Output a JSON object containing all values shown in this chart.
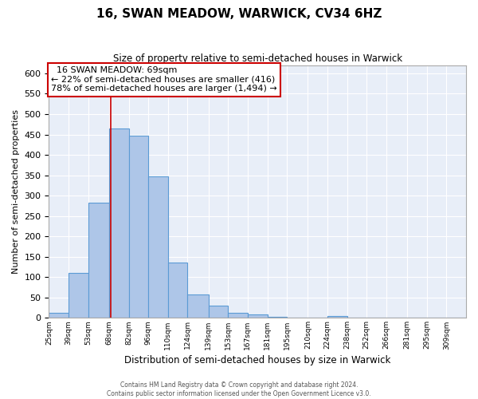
{
  "title": "16, SWAN MEADOW, WARWICK, CV34 6HZ",
  "subtitle": "Size of property relative to semi-detached houses in Warwick",
  "xlabel": "Distribution of semi-detached houses by size in Warwick",
  "ylabel": "Number of semi-detached properties",
  "bar_heights": [
    13,
    110,
    283,
    465,
    448,
    347,
    135,
    57,
    31,
    13,
    8,
    2,
    0,
    0,
    5,
    0,
    0,
    0,
    0,
    0,
    0
  ],
  "bin_edges": [
    25,
    39,
    53,
    68,
    82,
    96,
    110,
    124,
    139,
    153,
    167,
    181,
    195,
    210,
    224,
    238,
    252,
    266,
    281,
    295,
    309,
    323
  ],
  "xtick_labels": [
    "25sqm",
    "39sqm",
    "53sqm",
    "68sqm",
    "82sqm",
    "96sqm",
    "110sqm",
    "124sqm",
    "139sqm",
    "153sqm",
    "167sqm",
    "181sqm",
    "195sqm",
    "210sqm",
    "224sqm",
    "238sqm",
    "252sqm",
    "266sqm",
    "281sqm",
    "295sqm",
    "309sqm"
  ],
  "ylim": [
    0,
    620
  ],
  "yticks": [
    0,
    50,
    100,
    150,
    200,
    250,
    300,
    350,
    400,
    450,
    500,
    550,
    600
  ],
  "bar_color": "#aec6e8",
  "bar_edge_color": "#5b9bd5",
  "bg_color": "#e8eef8",
  "grid_color": "#ffffff",
  "annotation_box_color": "#cc0000",
  "property_size": 69,
  "property_label": "16 SWAN MEADOW: 69sqm",
  "pct_smaller": 22,
  "count_smaller": 416,
  "pct_larger": 78,
  "count_larger": 1494,
  "footer_line1": "Contains HM Land Registry data © Crown copyright and database right 2024.",
  "footer_line2": "Contains public sector information licensed under the Open Government Licence v3.0."
}
